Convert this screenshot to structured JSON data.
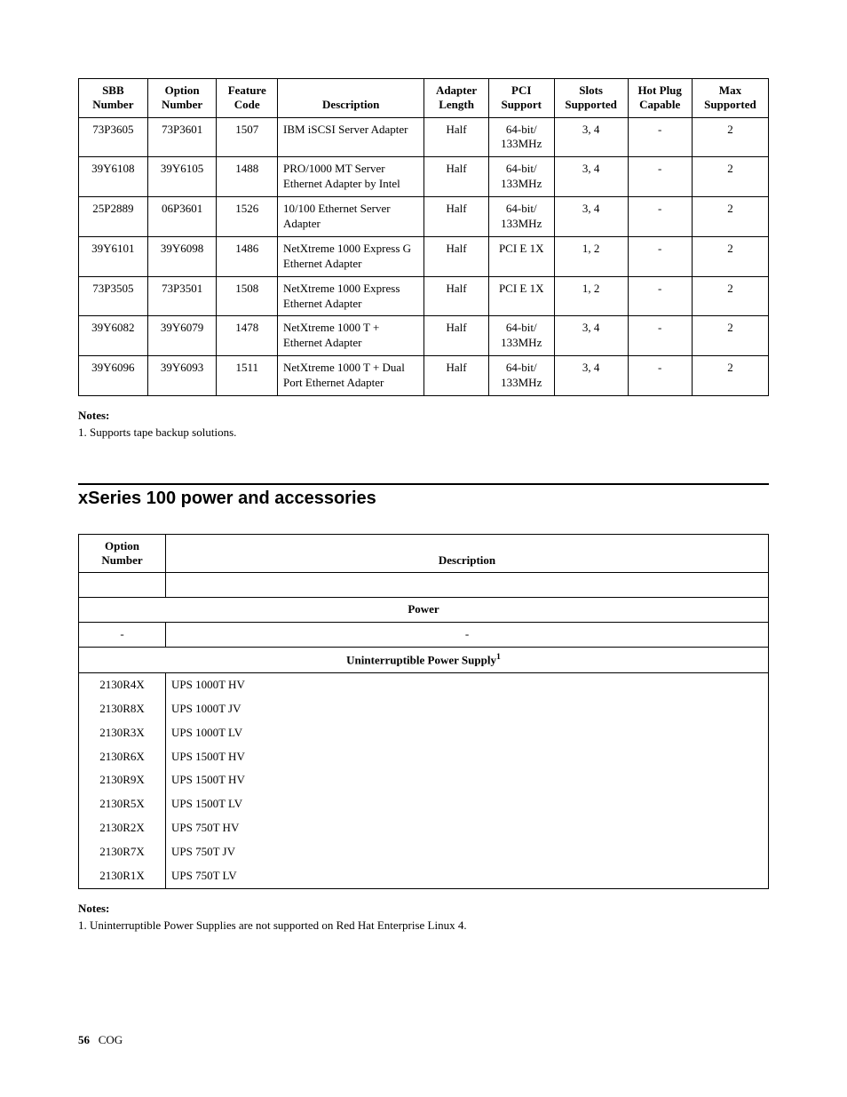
{
  "table1": {
    "headers": {
      "sbb": "SBB Number",
      "option": "Option Number",
      "feature": "Feature Code",
      "description": "Description",
      "adapter": "Adapter Length",
      "pci": "PCI Support",
      "slots": "Slots Supported",
      "hotplug": "Hot Plug Capable",
      "max": "Max Supported"
    },
    "rows": [
      {
        "sbb": "73P3605",
        "opt": "73P3601",
        "feat": "1507",
        "desc": "IBM iSCSI Server Adapter",
        "adap": "Half",
        "pci": "64-bit/ 133MHz",
        "slots": "3, 4",
        "hot": "-",
        "max": "2"
      },
      {
        "sbb": "39Y6108",
        "opt": "39Y6105",
        "feat": "1488",
        "desc": "PRO/1000 MT Server Ethernet Adapter by Intel",
        "adap": "Half",
        "pci": "64-bit/ 133MHz",
        "slots": "3, 4",
        "hot": "-",
        "max": "2"
      },
      {
        "sbb": "25P2889",
        "opt": "06P3601",
        "feat": "1526",
        "desc": "10/100 Ethernet Server Adapter",
        "adap": "Half",
        "pci": "64-bit/ 133MHz",
        "slots": "3, 4",
        "hot": "-",
        "max": "2"
      },
      {
        "sbb": "39Y6101",
        "opt": "39Y6098",
        "feat": "1486",
        "desc": "NetXtreme 1000 Express G Ethernet Adapter",
        "adap": "Half",
        "pci": "PCI E 1X",
        "slots": "1, 2",
        "hot": "-",
        "max": "2"
      },
      {
        "sbb": "73P3505",
        "opt": "73P3501",
        "feat": "1508",
        "desc": "NetXtreme 1000 Express Ethernet Adapter",
        "adap": "Half",
        "pci": "PCI E 1X",
        "slots": "1, 2",
        "hot": "-",
        "max": "2"
      },
      {
        "sbb": "39Y6082",
        "opt": "39Y6079",
        "feat": "1478",
        "desc": "NetXtreme 1000 T + Ethernet Adapter",
        "adap": "Half",
        "pci": "64-bit/ 133MHz",
        "slots": "3, 4",
        "hot": "-",
        "max": "2"
      },
      {
        "sbb": "39Y6096",
        "opt": "39Y6093",
        "feat": "1511",
        "desc": "NetXtreme 1000 T + Dual Port Ethernet Adapter",
        "adap": "Half",
        "pci": "64-bit/ 133MHz",
        "slots": "3, 4",
        "hot": "-",
        "max": "2"
      }
    ]
  },
  "notes1": {
    "heading": "Notes:",
    "text": "1.   Supports tape backup solutions."
  },
  "section_heading": "xSeries 100 power and accessories",
  "table2": {
    "headers": {
      "option": "Option Number",
      "description": "Description"
    },
    "section_power": "Power",
    "section_ups": "Uninterruptible Power Supply",
    "section_ups_sup": "1",
    "dash": "-",
    "rows": [
      {
        "opt": "2130R4X",
        "desc": "UPS 1000T HV"
      },
      {
        "opt": "2130R8X",
        "desc": "UPS 1000T JV"
      },
      {
        "opt": "2130R3X",
        "desc": "UPS 1000T LV"
      },
      {
        "opt": "2130R6X",
        "desc": "UPS 1500T HV"
      },
      {
        "opt": "2130R9X",
        "desc": "UPS 1500T HV"
      },
      {
        "opt": "2130R5X",
        "desc": "UPS 1500T LV"
      },
      {
        "opt": "2130R2X",
        "desc": "UPS 750T HV"
      },
      {
        "opt": "2130R7X",
        "desc": "UPS 750T JV"
      },
      {
        "opt": "2130R1X",
        "desc": "UPS 750T LV"
      }
    ]
  },
  "notes2": {
    "heading": "Notes:",
    "text": "1.   Uninterruptible Power Supplies are not supported on Red Hat Enterprise Linux 4."
  },
  "footer": {
    "page": "56",
    "label": "COG"
  }
}
